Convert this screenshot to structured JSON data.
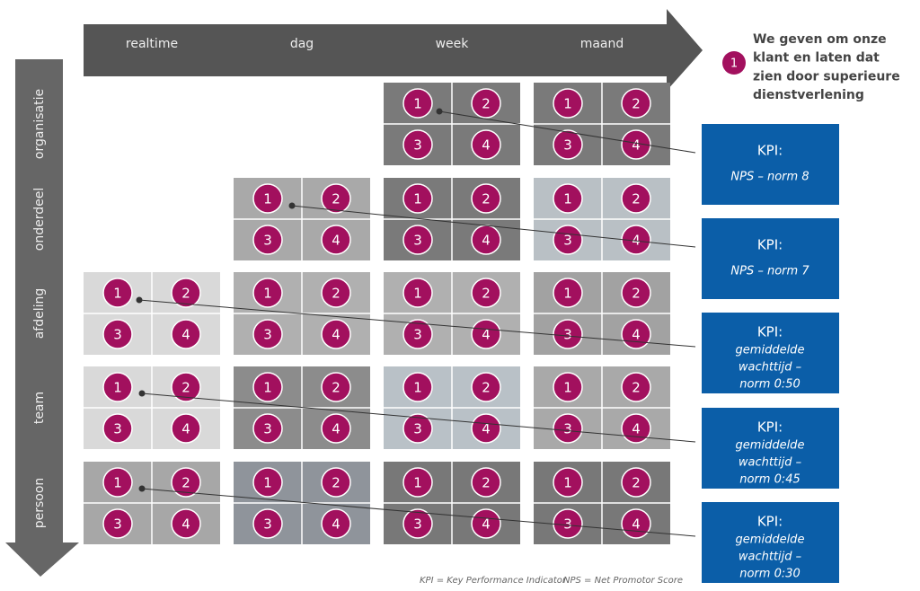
{
  "header": {
    "columns": [
      "realtime",
      "dag",
      "week",
      "maand"
    ]
  },
  "rows": [
    "organisatie",
    "onderdeel",
    "afdeling",
    "team",
    "persoon"
  ],
  "circle_labels": [
    "1",
    "2",
    "3",
    "4"
  ],
  "legend": {
    "text_lines": [
      "We geven om onze",
      "klant en laten dat",
      "zien door superieure",
      "dienstverlening"
    ]
  },
  "kpis": [
    {
      "title": "KPI:",
      "lines": [
        "NPS – norm 8"
      ]
    },
    {
      "title": "KPI:",
      "lines": [
        "NPS – norm 7"
      ]
    },
    {
      "title": "KPI:",
      "lines": [
        "gemiddelde",
        "wachttijd –",
        "norm 0:50"
      ]
    },
    {
      "title": "KPI:",
      "lines": [
        "gemiddelde",
        "wachttijd –",
        "norm 0:45"
      ]
    },
    {
      "title": "KPI:",
      "lines": [
        "gemiddelde",
        "wachttijd –",
        "norm 0:30"
      ]
    }
  ],
  "footnote": [
    "KPI = Key Performance Indicator",
    "NPS = Net Promotor Score"
  ]
}
